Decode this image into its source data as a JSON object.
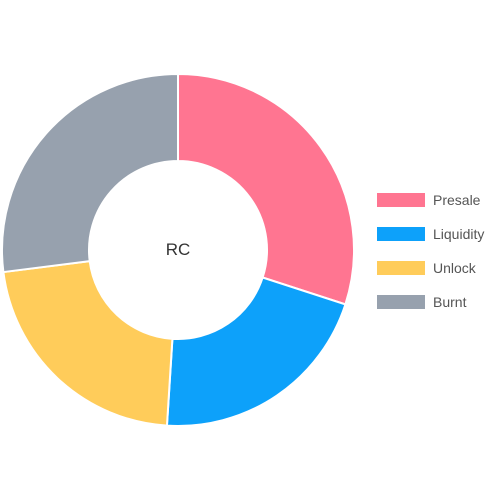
{
  "chart_data": {
    "type": "pie",
    "variant": "donut",
    "center_label": "RC",
    "legend_position": "right",
    "categories": [
      "Presale",
      "Liquidity",
      "Unlock",
      "Burnt"
    ],
    "values": [
      30,
      21,
      22,
      27
    ],
    "colors": [
      "#ff7591",
      "#0da1fa",
      "#ffcc5a",
      "#97a1ae"
    ]
  }
}
